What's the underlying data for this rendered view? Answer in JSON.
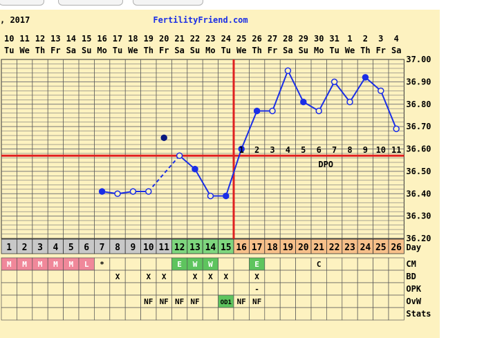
{
  "header": {
    "date_text": ", 2017",
    "site": "FertilityFriend.com"
  },
  "chart_data": {
    "type": "line",
    "temp_ticks": [
      "37.00",
      "36.90",
      "36.80",
      "36.70",
      "36.60",
      "36.50",
      "36.40",
      "36.30",
      "36.20"
    ],
    "ylim": [
      36.2,
      37.0
    ],
    "dates": [
      "10",
      "11",
      "12",
      "13",
      "14",
      "15",
      "16",
      "17",
      "18",
      "19",
      "20",
      "21",
      "22",
      "23",
      "24",
      "25",
      "26",
      "27",
      "28",
      "29",
      "30",
      "31",
      "1",
      "2",
      "3",
      "4"
    ],
    "weekdays": [
      "Tu",
      "We",
      "Th",
      "Fr",
      "Sa",
      "Su",
      "Mo",
      "Tu",
      "We",
      "Th",
      "Fr",
      "Sa",
      "Su",
      "Mo",
      "Tu",
      "We",
      "Th",
      "Fr",
      "Sa",
      "Su",
      "Mo",
      "Tu",
      "We",
      "Th",
      "Fr",
      "Sa"
    ],
    "cycle_days": [
      "1",
      "2",
      "3",
      "4",
      "5",
      "6",
      "7",
      "8",
      "9",
      "10",
      "11",
      "12",
      "13",
      "14",
      "15",
      "16",
      "17",
      "18",
      "19",
      "20",
      "21",
      "22",
      "23",
      "24",
      "25",
      "26"
    ],
    "day_colors": [
      "#c8c8c8",
      "#c8c8c8",
      "#c8c8c8",
      "#c8c8c8",
      "#c8c8c8",
      "#c8c8c8",
      "#c8c8c8",
      "#c8c8c8",
      "#c8c8c8",
      "#c8c8c8",
      "#c8c8c8",
      "#7ed67e",
      "#7ed67e",
      "#7ed67e",
      "#7ed67e",
      "#f7c08a",
      "#f7c08a",
      "#f7c08a",
      "#f7c08a",
      "#f7c08a",
      "#f7c08a",
      "#f7c08a",
      "#f7c08a",
      "#f7c08a",
      "#f7c08a",
      "#f7c08a"
    ],
    "temps": [
      null,
      null,
      null,
      null,
      null,
      null,
      36.41,
      36.4,
      36.41,
      36.41,
      36.65,
      36.57,
      36.51,
      36.39,
      36.39,
      36.6,
      36.77,
      36.77,
      36.95,
      36.81,
      36.77,
      36.9,
      36.81,
      36.92,
      36.86,
      36.69
    ],
    "point_style": [
      "",
      "",
      "",
      "",
      "",
      "",
      "filled",
      "open",
      "open",
      "open",
      "filled",
      "open",
      "filled",
      "open",
      "filled",
      "filled",
      "filled",
      "open",
      "open",
      "filled",
      "open",
      "open",
      "open",
      "filled",
      "open",
      "open"
    ],
    "dashed_segments": [
      [
        9,
        11
      ]
    ],
    "excluded_points": [
      10
    ],
    "coverline": 36.57,
    "ovulation_day_index": 14,
    "dpo_labels": [
      "1",
      "2",
      "3",
      "4",
      "5",
      "6",
      "7",
      "8",
      "9",
      "10",
      "11"
    ],
    "dpo_start_index": 15,
    "dpo_text": "DPO",
    "line_color": "#1a2ee6",
    "coverline_color": "#e02020",
    "grid_bg": "#fdf2c0",
    "rows": [
      {
        "label": "CM",
        "values": [
          "M",
          "M",
          "M",
          "M",
          "M",
          "L",
          "*",
          "",
          "",
          "",
          "",
          "E",
          "W",
          "W",
          "",
          "",
          "E",
          "",
          "",
          "",
          "C",
          "",
          "",
          "",
          "",
          ""
        ]
      },
      {
        "label": "BD",
        "values": [
          "",
          "",
          "",
          "",
          "",
          "",
          "",
          "X",
          "",
          "X",
          "X",
          "",
          "X",
          "X",
          "X",
          "",
          "X",
          "",
          "",
          "",
          "",
          "",
          "",
          "",
          "",
          ""
        ]
      },
      {
        "label": "OPK",
        "values": [
          "",
          "",
          "",
          "",
          "",
          "",
          "",
          "",
          "",
          "",
          "",
          "",
          "",
          "",
          "",
          "",
          "-",
          "",
          "",
          "",
          "",
          "",
          "",
          "",
          "",
          ""
        ]
      },
      {
        "label": "OvW",
        "values": [
          "",
          "",
          "",
          "",
          "",
          "",
          "",
          "",
          "",
          "NF",
          "NF",
          "NF",
          "NF",
          "",
          "OD1",
          "NF",
          "NF",
          "",
          "",
          "",
          "",
          "",
          "",
          "",
          "",
          ""
        ]
      },
      {
        "label": "Stats",
        "values": [
          "",
          "",
          "",
          "",
          "",
          "",
          "",
          "",
          "",
          "",
          "",
          "",
          "",
          "",
          "",
          "",
          "",
          "",
          "",
          "",
          "",
          "",
          "",
          "",
          "",
          ""
        ]
      }
    ],
    "day_label": "Day",
    "menses_color": "#f0889a",
    "green_color": "#5ec45e"
  }
}
